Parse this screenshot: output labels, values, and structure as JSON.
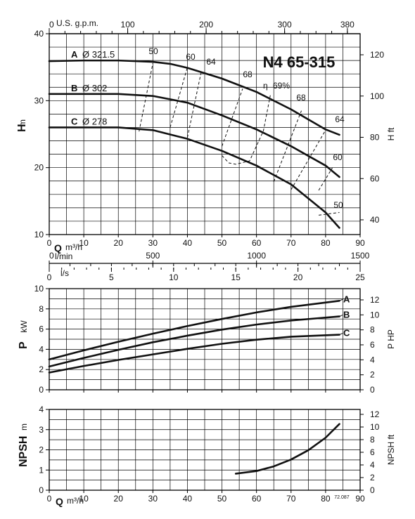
{
  "model_title": "N4 65-315",
  "figure_code": "72.087",
  "top_axis": {
    "label": "U.S. g.p.m.",
    "ticks": [
      0,
      100,
      200,
      300,
      380
    ]
  },
  "q_axis": {
    "symbol": "Q",
    "unit": "m³/h",
    "ticks": [
      0,
      10,
      20,
      30,
      40,
      50,
      60,
      70,
      80,
      90
    ]
  },
  "lmin_axis": {
    "label": "l/min",
    "ticks": [
      0,
      500,
      1000,
      1500
    ]
  },
  "ls_axis": {
    "label": "l/s",
    "ticks": [
      0,
      5,
      10,
      15,
      20,
      25
    ]
  },
  "chart_data": [
    {
      "type": "line",
      "id": "head",
      "ylabel": "H",
      "yunit": "m",
      "ylim": [
        10,
        40
      ],
      "yticks": [
        10,
        20,
        30,
        40
      ],
      "y2label": "H ft",
      "y2ticks": [
        40,
        60,
        80,
        100,
        120
      ],
      "xlim": [
        0,
        90
      ],
      "grid": true,
      "series": [
        {
          "name": "A",
          "label": "Ø 321.5",
          "x": [
            0,
            10,
            20,
            30,
            35,
            40,
            50,
            60,
            70,
            80,
            84
          ],
          "y": [
            35.9,
            36,
            36,
            35.8,
            35.5,
            34.9,
            33.3,
            31.3,
            28.7,
            25.7,
            24.9
          ]
        },
        {
          "name": "B",
          "label": "Ø 302",
          "x": [
            0,
            10,
            20,
            30,
            40,
            50,
            60,
            70,
            80,
            84
          ],
          "y": [
            31,
            31,
            31,
            30.7,
            29.7,
            27.8,
            25.7,
            23.2,
            20.3,
            18.6
          ]
        },
        {
          "name": "C",
          "label": "Ø 278",
          "x": [
            0,
            10,
            20,
            30,
            40,
            50,
            60,
            70,
            80,
            84
          ],
          "y": [
            26,
            26,
            26,
            25.6,
            24.3,
            22.5,
            20.3,
            17.5,
            13.3,
            11
          ]
        }
      ],
      "efficiency": {
        "symbol": "η",
        "unit": "%",
        "lines": [
          {
            "label": "50",
            "x": [
              26,
              30
            ],
            "y": [
              25.4,
              35.6
            ]
          },
          {
            "label": "60",
            "x": [
              35,
              40
            ],
            "y": [
              26.0,
              35.0
            ]
          },
          {
            "label": "64",
            "x": [
              40,
              44
            ],
            "y": [
              24.5,
              34.3
            ]
          },
          {
            "label": "68",
            "x": [
              50,
              56
            ],
            "y": [
              23.2,
              31.8
            ]
          },
          {
            "label": "69",
            "x": [
              50,
              52,
              54,
              58,
              62,
              64
            ],
            "y": [
              21.8,
              20.7,
              20.5,
              21.0,
              25.5,
              30.8
            ]
          },
          {
            "label": "68",
            "x": [
              65,
              73
            ],
            "y": [
              17.9,
              28.5
            ]
          },
          {
            "label": "64",
            "x": [
              70,
              80
            ],
            "y": [
              16.7,
              25.6
            ]
          },
          {
            "label": "60",
            "x": [
              78,
              82
            ],
            "y": [
              16.6,
              20.0
            ]
          },
          {
            "label": "50",
            "x": [
              78,
              84
            ],
            "y": [
              12.9,
              13.3
            ]
          }
        ]
      }
    },
    {
      "type": "line",
      "id": "power",
      "ylabel": "P",
      "yunit": "kW",
      "ylim": [
        0,
        10
      ],
      "yticks": [
        0,
        2,
        4,
        6,
        8,
        10
      ],
      "y2label": "P HP",
      "y2ticks": [
        0,
        2,
        4,
        6,
        8,
        10,
        12
      ],
      "xlim": [
        0,
        90
      ],
      "grid": true,
      "series": [
        {
          "name": "A",
          "x": [
            0,
            10,
            20,
            30,
            40,
            50,
            60,
            70,
            84
          ],
          "y": [
            3.0,
            3.9,
            4.75,
            5.55,
            6.3,
            7.0,
            7.65,
            8.2,
            8.8
          ]
        },
        {
          "name": "B",
          "x": [
            0,
            10,
            20,
            30,
            40,
            50,
            60,
            70,
            84
          ],
          "y": [
            2.3,
            3.15,
            3.95,
            4.7,
            5.35,
            5.95,
            6.45,
            6.85,
            7.25
          ]
        },
        {
          "name": "C",
          "x": [
            0,
            10,
            20,
            30,
            40,
            50,
            60,
            70,
            84
          ],
          "y": [
            1.7,
            2.35,
            2.95,
            3.5,
            4.05,
            4.55,
            4.95,
            5.25,
            5.45
          ]
        }
      ]
    },
    {
      "type": "line",
      "id": "npsh",
      "ylabel": "NPSH",
      "yunit": "m",
      "ylim": [
        0,
        4
      ],
      "yticks": [
        0,
        1,
        2,
        3,
        4
      ],
      "y2label": "NPSH ft",
      "y2ticks": [
        0,
        2,
        4,
        6,
        8,
        10,
        12
      ],
      "xlim": [
        0,
        90
      ],
      "grid": true,
      "series": [
        {
          "name": "NPSH",
          "x": [
            54,
            60,
            65,
            70,
            75,
            80,
            84
          ],
          "y": [
            0.82,
            0.95,
            1.18,
            1.52,
            1.98,
            2.6,
            3.28
          ]
        }
      ]
    }
  ]
}
